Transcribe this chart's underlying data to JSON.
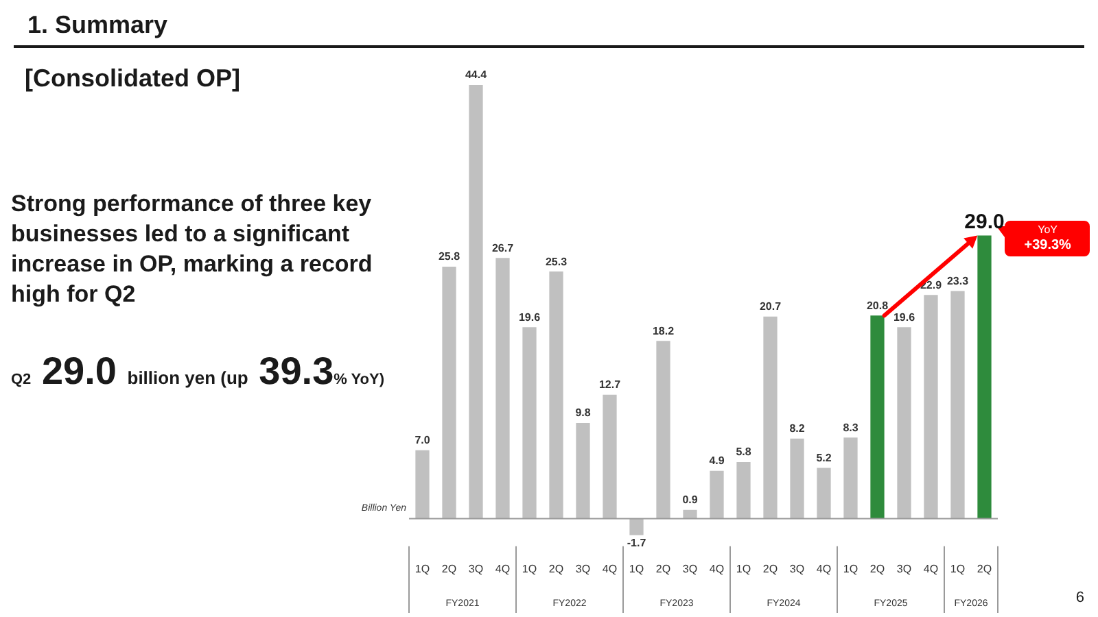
{
  "chart_data": {
    "type": "bar",
    "title": "1. Summary",
    "subtitle": "[Consolidated OP]",
    "ylabel": "Billion Yen",
    "categories": [
      "1Q",
      "2Q",
      "3Q",
      "4Q",
      "1Q",
      "2Q",
      "3Q",
      "4Q",
      "1Q",
      "2Q",
      "3Q",
      "4Q",
      "1Q",
      "2Q",
      "3Q",
      "4Q",
      "1Q",
      "2Q",
      "3Q",
      "4Q",
      "1Q",
      "2Q"
    ],
    "values": [
      7.0,
      25.8,
      44.4,
      26.7,
      19.6,
      25.3,
      9.8,
      12.7,
      -1.7,
      18.2,
      0.9,
      4.9,
      5.8,
      20.7,
      8.2,
      5.2,
      8.3,
      20.8,
      19.6,
      22.9,
      23.3,
      29.0
    ],
    "value_labels": [
      "7.0",
      "25.8",
      "44.4",
      "26.7",
      "19.6",
      "25.3",
      "9.8",
      "12.7",
      "-1.7",
      "18.2",
      "0.9",
      "4.9",
      "5.8",
      "20.7",
      "8.2",
      "5.2",
      "8.3",
      "20.8",
      "19.6",
      "22.9",
      "23.3",
      "29.0"
    ],
    "colors": [
      "#c0c0c0",
      "#c0c0c0",
      "#c0c0c0",
      "#c0c0c0",
      "#c0c0c0",
      "#c0c0c0",
      "#c0c0c0",
      "#c0c0c0",
      "#c0c0c0",
      "#c0c0c0",
      "#c0c0c0",
      "#c0c0c0",
      "#c0c0c0",
      "#c0c0c0",
      "#c0c0c0",
      "#c0c0c0",
      "#c0c0c0",
      "#2e8b3c",
      "#c0c0c0",
      "#c0c0c0",
      "#c0c0c0",
      "#2e8b3c"
    ],
    "tick_labels": "x",
    "annotations": [
      "Strong performance of three key businesses led to a significant increase in OP, marking a record high for Q2",
      "Q2 29.0 billion yen (up 39.3% YoY)",
      "YoY +39.3%",
      "FY2021",
      "FY2022",
      "FY2023",
      "FY2024",
      "FY2025",
      "FY2026",
      "6"
    ]
  }
}
